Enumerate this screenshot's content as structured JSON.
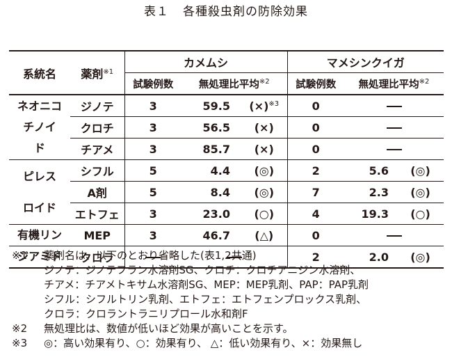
{
  "title": {
    "num": "表１",
    "text": "各種殺虫剤の防除効果"
  },
  "header": {
    "system": "系統名",
    "drug": "薬剤",
    "drug_note": "※1",
    "pest1": "カメムシ",
    "pest2": "マメシンクイガ",
    "count": "試験例数",
    "ratio": "無処理比平均",
    "ratio_note": "※2",
    "eval_note": "※3"
  },
  "groups": [
    {
      "name": [
        "ネオニコ",
        "チノイ",
        "ド"
      ],
      "rows": [
        {
          "drug": "ジノテ",
          "k_count": "3",
          "k_ratio": "59.5",
          "k_eval": "(×)",
          "m_count": "0",
          "m_ratio": "",
          "m_eval": ""
        },
        {
          "drug": "クロチ",
          "k_count": "3",
          "k_ratio": "56.5",
          "k_eval": "(×)",
          "m_count": "0",
          "m_ratio": "",
          "m_eval": ""
        },
        {
          "drug": "チアメ",
          "k_count": "3",
          "k_ratio": "85.7",
          "k_eval": "(×)",
          "m_count": "0",
          "m_ratio": "",
          "m_eval": ""
        }
      ]
    },
    {
      "name": [
        "ピレス",
        "ロイド"
      ],
      "rows": [
        {
          "drug": "シフル",
          "k_count": "5",
          "k_ratio": "4.4",
          "k_eval": "(◎)",
          "m_count": "2",
          "m_ratio": "5.6",
          "m_eval": "(◎)"
        },
        {
          "drug": "A剤",
          "k_count": "5",
          "k_ratio": "8.4",
          "k_eval": "(◎)",
          "m_count": "7",
          "m_ratio": "2.3",
          "m_eval": "(◎)"
        },
        {
          "drug": "エトフェ",
          "k_count": "3",
          "k_ratio": "23.0",
          "k_eval": "(○)",
          "m_count": "4",
          "m_ratio": "19.3",
          "m_eval": "(○)"
        }
      ]
    },
    {
      "name": [
        "有機リン"
      ],
      "rows": [
        {
          "drug": "MEP",
          "k_count": "3",
          "k_ratio": "46.7",
          "k_eval": "(△)",
          "m_count": "0",
          "m_ratio": "",
          "m_eval": ""
        }
      ]
    },
    {
      "name": [
        "ジアミド"
      ],
      "rows": [
        {
          "drug": "クロラ",
          "k_count": "",
          "k_ratio": "",
          "k_eval": "",
          "m_count": "2",
          "m_ratio": "2.0",
          "m_eval": "(◎)"
        }
      ]
    }
  ],
  "notes": [
    {
      "mark": "※1",
      "lines": [
        "薬剤名は、以下のとおり省略した(表1,2共通)",
        "ジノテ：ジノテフラン水溶剤SG、クロチ：クロチアニジン水溶剤、",
        "チアメ：チアメトキサム水溶剤SG、MEP：MEP乳剤、PAP：PAP乳剤",
        "シフル：シフルトリン乳剤、エトフェ：エトフェンプロックス乳剤、",
        "クロラ：クロラントラニリプロール水和剤F"
      ]
    },
    {
      "mark": "※2",
      "lines": [
        "無処理比は、数値が低いほど効果が高いことを示す。"
      ]
    },
    {
      "mark": "※3",
      "lines": [
        "◎：高い効果有り、○：効果有り、 △：低い効果有り、×：効果無し"
      ]
    }
  ]
}
